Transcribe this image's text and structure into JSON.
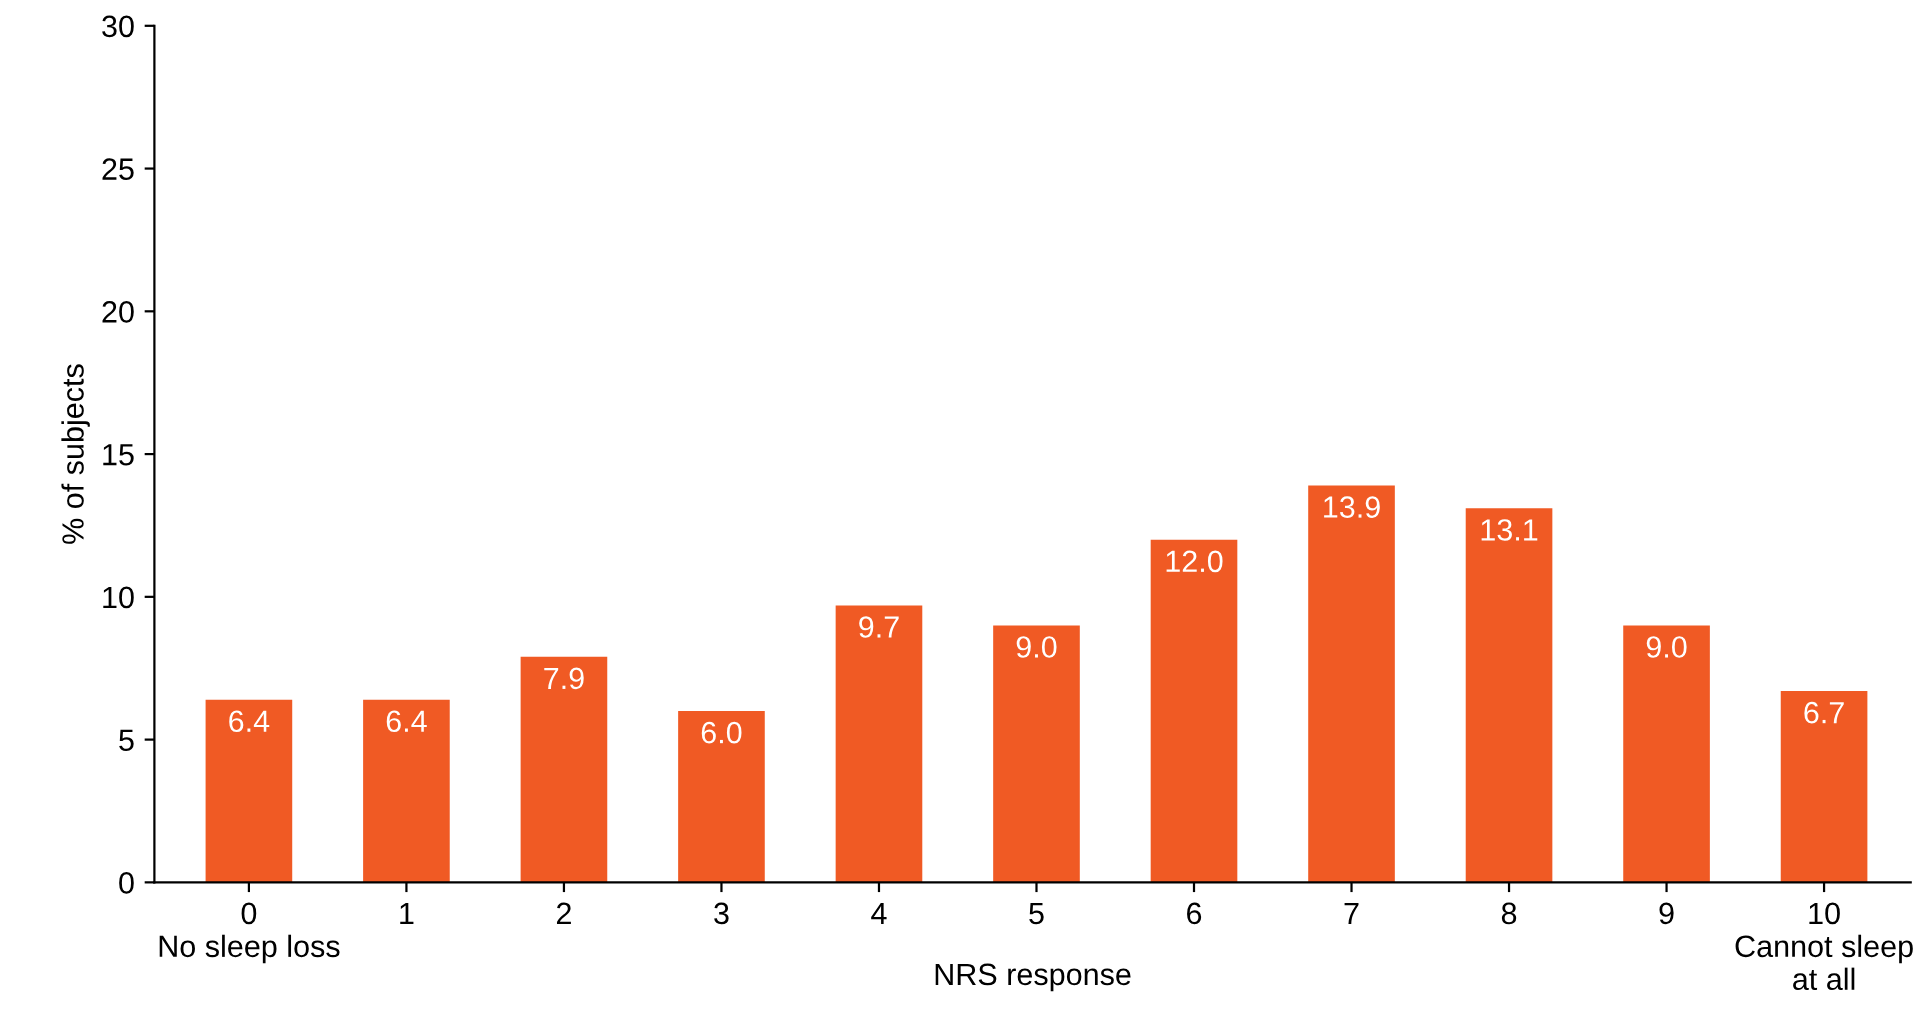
{
  "chart_data": {
    "type": "bar",
    "xlabel": "NRS response",
    "ylabel": "% of subjects",
    "categories": [
      "0\nNo sleep loss",
      "1",
      "2",
      "3",
      "4",
      "5",
      "6",
      "7",
      "8",
      "9",
      "10\nCannot sleep\nat all"
    ],
    "values": [
      6.4,
      6.4,
      7.9,
      6.0,
      9.7,
      9.0,
      12.0,
      13.9,
      13.1,
      9.0,
      6.7
    ],
    "color": "#f05a24",
    "ylim": [
      0,
      30
    ],
    "yticks": [
      0,
      5,
      10,
      15,
      20,
      25,
      30
    ],
    "value_labels": [
      "6.4",
      "6.4",
      "7.9",
      "6.0",
      "9.7",
      "9.0",
      "12.0",
      "13.9",
      "13.1",
      "9.0",
      "6.7"
    ],
    "grid": false
  }
}
